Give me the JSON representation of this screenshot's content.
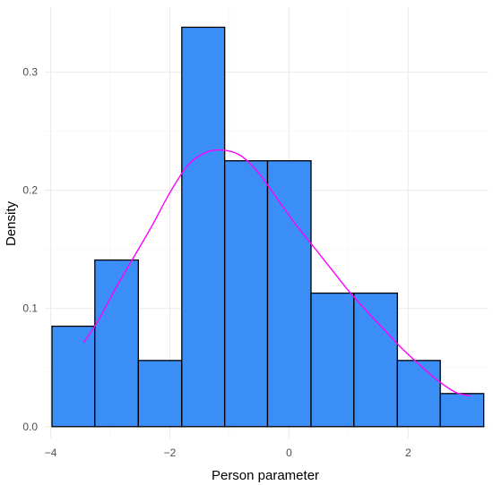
{
  "chart_data": {
    "type": "bar",
    "subtype": "histogram_with_density",
    "xlabel": "Person parameter",
    "ylabel": "Density",
    "xlim": [
      -4.1,
      3.35
    ],
    "ylim": [
      -0.01,
      0.355
    ],
    "x_ticks": [
      -4,
      -2,
      0,
      2
    ],
    "x_tick_labels": [
      "−4",
      "−2",
      "0",
      "2"
    ],
    "y_ticks": [
      0.0,
      0.1,
      0.2,
      0.3
    ],
    "y_tick_labels": [
      "0.0",
      "0.1",
      "0.2",
      "0.3"
    ],
    "grid": true,
    "bar_color": "#3a8ef6",
    "bar_edge_color": "#000000",
    "density_color": "#ff00ff",
    "bins": [
      {
        "x0": -3.98,
        "x1": -3.26,
        "value": 0.085
      },
      {
        "x0": -3.26,
        "x1": -2.53,
        "value": 0.141
      },
      {
        "x0": -2.53,
        "x1": -1.8,
        "value": 0.056
      },
      {
        "x0": -1.8,
        "x1": -1.08,
        "value": 0.338
      },
      {
        "x0": -1.08,
        "x1": -0.36,
        "value": 0.225
      },
      {
        "x0": -0.36,
        "x1": 0.37,
        "value": 0.225
      },
      {
        "x0": 0.37,
        "x1": 1.09,
        "value": 0.113
      },
      {
        "x0": 1.09,
        "x1": 1.82,
        "value": 0.113
      },
      {
        "x0": 1.82,
        "x1": 2.54,
        "value": 0.056
      },
      {
        "x0": 2.54,
        "x1": 3.27,
        "value": 0.028
      }
    ],
    "density_curve": [
      [
        -3.45,
        0.071
      ],
      [
        -3.2,
        0.09
      ],
      [
        -2.9,
        0.118
      ],
      [
        -2.6,
        0.144
      ],
      [
        -2.3,
        0.17
      ],
      [
        -2.0,
        0.198
      ],
      [
        -1.7,
        0.221
      ],
      [
        -1.4,
        0.232
      ],
      [
        -1.1,
        0.234
      ],
      [
        -0.8,
        0.229
      ],
      [
        -0.5,
        0.214
      ],
      [
        -0.2,
        0.193
      ],
      [
        0.1,
        0.172
      ],
      [
        0.4,
        0.153
      ],
      [
        0.7,
        0.134
      ],
      [
        1.0,
        0.115
      ],
      [
        1.3,
        0.098
      ],
      [
        1.6,
        0.082
      ],
      [
        1.9,
        0.066
      ],
      [
        2.2,
        0.052
      ],
      [
        2.5,
        0.039
      ],
      [
        2.8,
        0.029
      ],
      [
        3.05,
        0.026
      ]
    ]
  }
}
